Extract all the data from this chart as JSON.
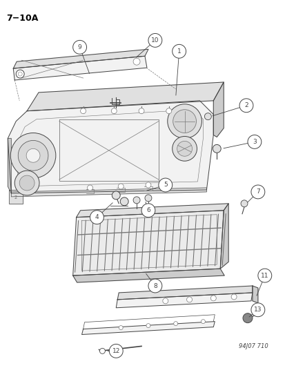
{
  "title": "7−10A",
  "background_color": "#ffffff",
  "diagram_code": "94J07 710",
  "lw": 0.7,
  "gray": "#444444",
  "lgray": "#777777",
  "fill_light": "#f2f2f2",
  "fill_mid": "#e0e0e0",
  "fill_dark": "#cccccc"
}
